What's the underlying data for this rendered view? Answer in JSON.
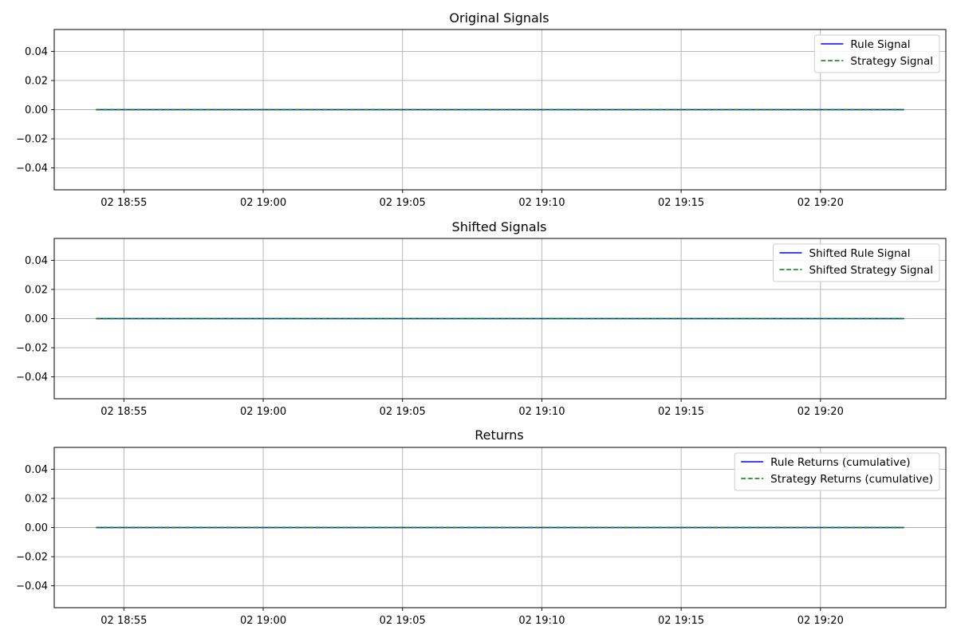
{
  "chart_data": [
    {
      "type": "line",
      "title": "Original Signals",
      "xlabel": "",
      "ylabel": "",
      "x": [
        "02 18:54",
        "02 19:23"
      ],
      "xticks": [
        "02 18:55",
        "02 19:00",
        "02 19:05",
        "02 19:10",
        "02 19:15",
        "02 19:20"
      ],
      "xlim": [
        "02 18:52:30",
        "02 19:24:30"
      ],
      "yticks": [
        "0.04",
        "0.02",
        "0.00",
        "−0.02",
        "−0.04"
      ],
      "ylim": [
        -0.055,
        0.055
      ],
      "grid": true,
      "legend_position": "top-right",
      "series": [
        {
          "name": "Rule Signal",
          "color": "#0000ff",
          "style": "solid",
          "values": [
            0,
            0
          ]
        },
        {
          "name": "Strategy Signal",
          "color": "#008000",
          "style": "dashed",
          "values": [
            0,
            0
          ]
        }
      ]
    },
    {
      "type": "line",
      "title": "Shifted Signals",
      "xlabel": "",
      "ylabel": "",
      "x": [
        "02 18:54",
        "02 19:23"
      ],
      "xticks": [
        "02 18:55",
        "02 19:00",
        "02 19:05",
        "02 19:10",
        "02 19:15",
        "02 19:20"
      ],
      "xlim": [
        "02 18:52:30",
        "02 19:24:30"
      ],
      "yticks": [
        "0.04",
        "0.02",
        "0.00",
        "−0.02",
        "−0.04"
      ],
      "ylim": [
        -0.055,
        0.055
      ],
      "grid": true,
      "legend_position": "top-right",
      "series": [
        {
          "name": "Shifted Rule Signal",
          "color": "#0000ff",
          "style": "solid",
          "values": [
            0,
            0
          ]
        },
        {
          "name": "Shifted Strategy Signal",
          "color": "#008000",
          "style": "dashed",
          "values": [
            0,
            0
          ]
        }
      ]
    },
    {
      "type": "line",
      "title": "Returns",
      "xlabel": "",
      "ylabel": "",
      "x": [
        "02 18:54",
        "02 19:23"
      ],
      "xticks": [
        "02 18:55",
        "02 19:00",
        "02 19:05",
        "02 19:10",
        "02 19:15",
        "02 19:20"
      ],
      "xlim": [
        "02 18:52:30",
        "02 19:24:30"
      ],
      "yticks": [
        "0.04",
        "0.02",
        "0.00",
        "−0.02",
        "−0.04"
      ],
      "ylim": [
        -0.055,
        0.055
      ],
      "grid": true,
      "legend_position": "top-right",
      "series": [
        {
          "name": "Rule Returns (cumulative)",
          "color": "#0000ff",
          "style": "solid",
          "values": [
            0,
            0
          ]
        },
        {
          "name": "Strategy Returns (cumulative)",
          "color": "#008000",
          "style": "dashed",
          "values": [
            0,
            0
          ]
        }
      ]
    }
  ]
}
